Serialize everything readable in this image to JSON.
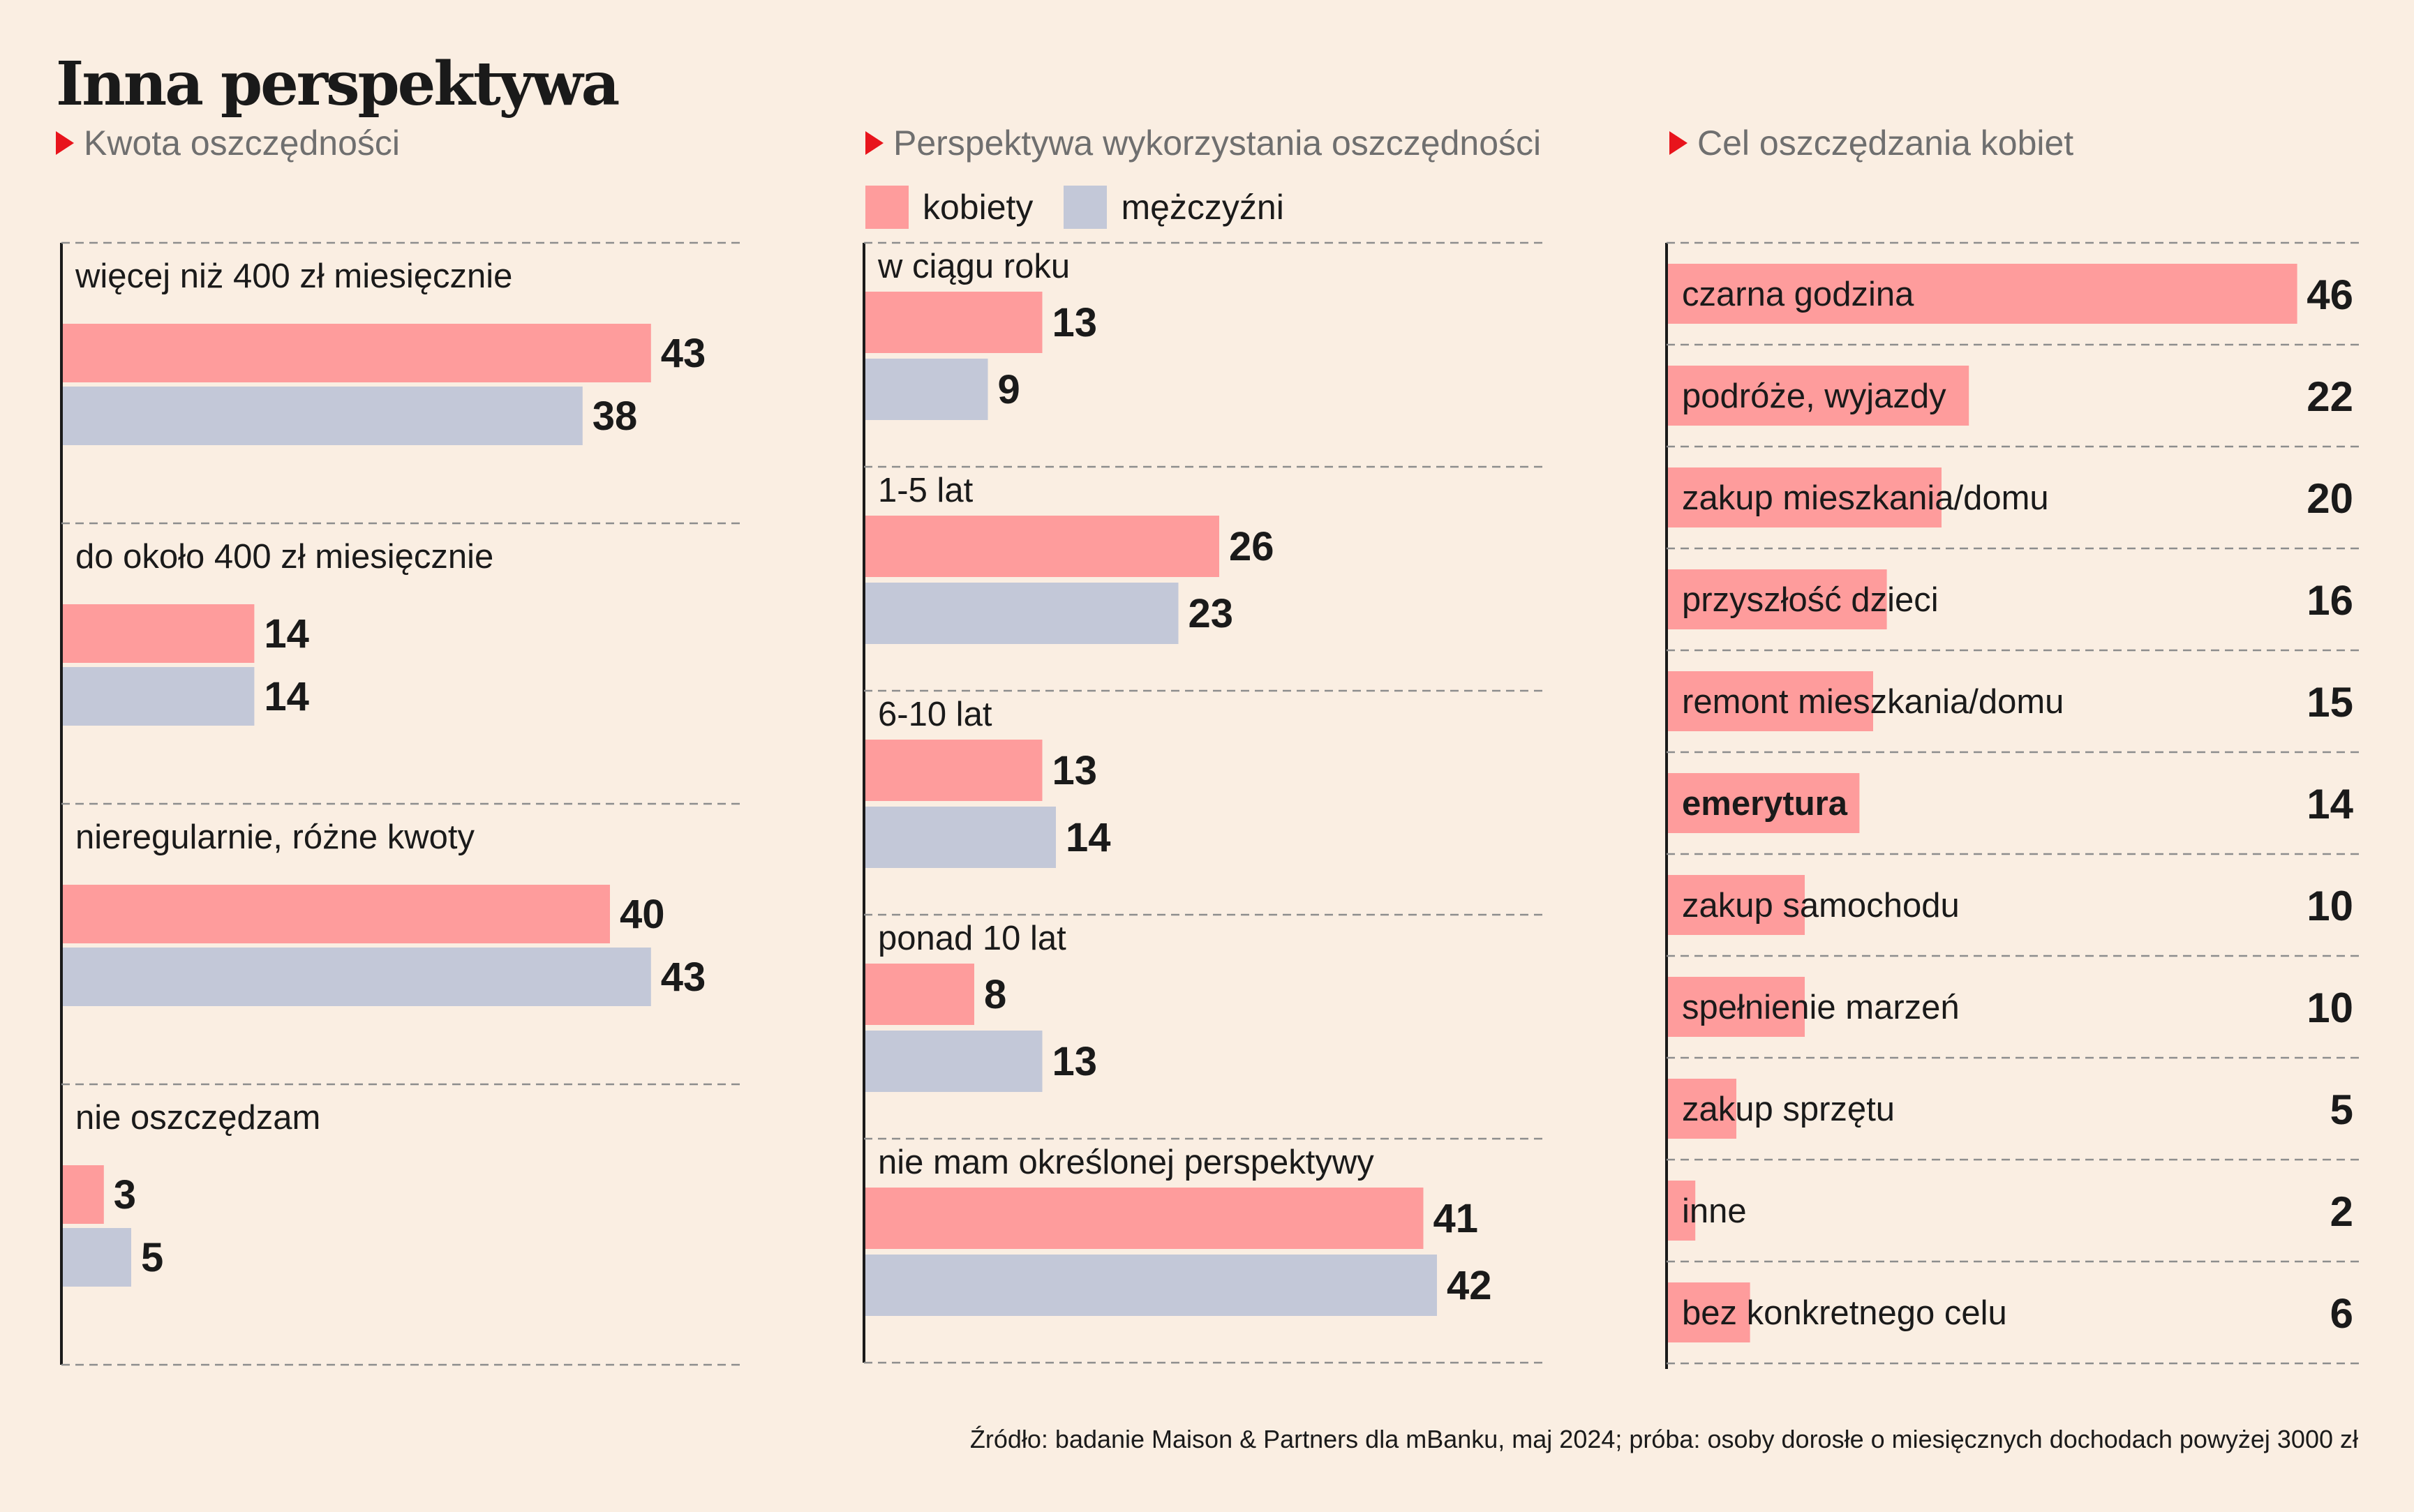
{
  "header": {
    "title": "Inna perspektywa"
  },
  "colors": {
    "background": "#faeee2",
    "women": "#fe9c9c",
    "men": "#c3c8d8",
    "accent_triangle": "#e8141c"
  },
  "source": "Źródło: badanie Maison & Partners dla mBanku, maj 2024; próba: osoby dorosłe o miesięcznych dochodach powyżej 3000 zł",
  "chart_data": [
    {
      "type": "bar",
      "orientation": "horizontal",
      "subtitle": "Kwota oszczędności",
      "categories": [
        "więcej niż 400 zł miesięcznie",
        "do około 400 zł miesięcznie",
        "nieregularnie, różne kwoty",
        "nie oszczędzam"
      ],
      "series": [
        {
          "name": "kobiety",
          "values": [
            43,
            14,
            40,
            3
          ]
        },
        {
          "name": "mężczyźni",
          "values": [
            38,
            14,
            43,
            5
          ]
        }
      ],
      "xlim": [
        0,
        50
      ],
      "grid": "dashed category separators"
    },
    {
      "type": "bar",
      "orientation": "horizontal",
      "subtitle": "Perspektywa wykorzystania oszczędności",
      "legend": {
        "position": "top-left",
        "entries": [
          "kobiety",
          "mężczyźni"
        ]
      },
      "categories": [
        "w ciągu roku",
        "1-5 lat",
        "6-10 lat",
        "ponad 10 lat",
        "nie mam określonej perspektywy"
      ],
      "series": [
        {
          "name": "kobiety",
          "values": [
            13,
            26,
            13,
            8,
            41
          ]
        },
        {
          "name": "mężczyźni",
          "values": [
            9,
            23,
            14,
            13,
            42
          ]
        }
      ],
      "xlim": [
        0,
        50
      ],
      "grid": "dashed category separators"
    },
    {
      "type": "bar",
      "orientation": "horizontal",
      "subtitle": "Cel oszczędzania kobiet",
      "categories": [
        "czarna godzina",
        "podróże, wyjazdy",
        "zakup mieszkania/domu",
        "przyszłość dzieci",
        "remont mieszkania/domu",
        "emerytura",
        "zakup samochodu",
        "spełnienie marzeń",
        "zakup sprzętu",
        "inne",
        "bez konkretnego celu"
      ],
      "highlight_category": "emerytura",
      "series": [
        {
          "name": "kobiety",
          "values": [
            46,
            22,
            20,
            16,
            15,
            14,
            10,
            10,
            5,
            2,
            6
          ]
        }
      ],
      "xlim": [
        0,
        46
      ],
      "grid": "dashed category separators"
    }
  ]
}
